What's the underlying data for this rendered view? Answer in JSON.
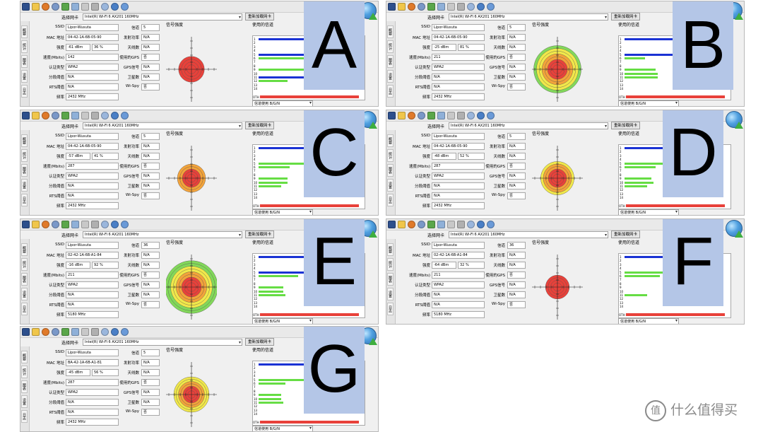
{
  "common": {
    "nic_label": "选择网卡",
    "nic_value": "Intel(R) Wi-Fi 6 AX201 160MHz",
    "reload_label": "重新加载网卡",
    "side_tabs": [
      "概要",
      "统计",
      "图表",
      "设置",
      "日志"
    ],
    "labels_left": [
      "SSID",
      "MAC 地址",
      "强度",
      "速度(Mbits)",
      "认证类型",
      "分段阈值",
      "RTS阈值",
      "频率"
    ],
    "labels_right": [
      "信道",
      "发射功率",
      "天线数",
      "使用的GPS",
      "GPS信号",
      "卫星数",
      "Wi-Spy"
    ],
    "signal_title": "信号强度",
    "channels_title": "使用的信道",
    "channel_mode": "信道使用 B/G/N",
    "channel_numbers": [
      "1",
      "2",
      "3",
      "4",
      "5",
      "6",
      "7",
      "8",
      "9",
      "10",
      "11",
      "12",
      "13",
      "14"
    ],
    "oth_label": "OTH",
    "colors": {
      "strong": "#1a32d4",
      "weak": "#66dd44",
      "oth": "#e8413a",
      "ring_red": "#e8413a",
      "ring_orange": "#f3a33a",
      "ring_yellow": "#f1e84a",
      "ring_green": "#82d85a",
      "letter_bg": "#b4c6e7"
    }
  },
  "panels": [
    {
      "letter": "A",
      "ssid": "Lipor-Wuxuta",
      "mac": "04-42-1A-6B-05-90",
      "strength_dbm": "-61 dBm",
      "strength_pct": "36 %",
      "speed": "142",
      "auth": "WPA2",
      "frag": "N/A",
      "rts": "N/A",
      "freq": "2432 MHz",
      "channel": "5",
      "tx_power": "N/A",
      "antennas": "N/A",
      "gps_used": "否",
      "gps_signal": "N/A",
      "satellites": "N/A",
      "wispy": "否",
      "signal_percent": 36,
      "rings": [
        "red",
        "red",
        "red",
        "red"
      ],
      "bars": [
        {
          "ch": 1,
          "kind": "strong",
          "level": 1.0
        },
        {
          "ch": 5,
          "kind": "strong",
          "level": 0.78
        },
        {
          "ch": 6,
          "kind": "weak",
          "level": 0.48
        },
        {
          "ch": 9,
          "kind": "weak",
          "level": 0.5
        },
        {
          "ch": 11,
          "kind": "strong",
          "level": 0.82
        },
        {
          "ch": 12,
          "kind": "weak",
          "level": 0.28
        }
      ]
    },
    {
      "letter": "B",
      "ssid": "Lipor-Wuxuta",
      "mac": "04-42-1A-6B-05-90",
      "strength_dbm": "-25 dBm",
      "strength_pct": "81 %",
      "speed": "211",
      "auth": "WPA2",
      "frag": "N/A",
      "rts": "N/A",
      "freq": "2432 MHz",
      "channel": "5",
      "tx_power": "N/A",
      "antennas": "N/A",
      "gps_used": "否",
      "gps_signal": "N/A",
      "satellites": "N/A",
      "wispy": "否",
      "signal_percent": 81,
      "rings": [
        "green",
        "yellow",
        "yellow",
        "orange",
        "orange",
        "red",
        "red",
        "red"
      ],
      "bars": [
        {
          "ch": 1,
          "kind": "strong",
          "level": 1.0
        },
        {
          "ch": 5,
          "kind": "strong",
          "level": 0.68
        },
        {
          "ch": 6,
          "kind": "weak",
          "level": 0.2
        },
        {
          "ch": 9,
          "kind": "weak",
          "level": 0.3
        },
        {
          "ch": 10,
          "kind": "weak",
          "level": 0.32
        },
        {
          "ch": 11,
          "kind": "weak",
          "level": 0.32
        }
      ]
    },
    {
      "letter": "C",
      "ssid": "Lipor-Wuxuta",
      "mac": "04-42-1A-6B-05-90",
      "strength_dbm": "-57 dBm",
      "strength_pct": "41 %",
      "speed": "287",
      "auth": "WPA2",
      "frag": "N/A",
      "rts": "N/A",
      "freq": "2432 MHz",
      "channel": "5",
      "tx_power": "N/A",
      "antennas": "N/A",
      "gps_used": "否",
      "gps_signal": "N/A",
      "satellites": "N/A",
      "wispy": "否",
      "signal_percent": 41,
      "rings": [
        "orange",
        "orange",
        "red",
        "red",
        "red"
      ],
      "bars": [
        {
          "ch": 1,
          "kind": "strong",
          "level": 0.82
        },
        {
          "ch": 5,
          "kind": "weak",
          "level": 0.55
        },
        {
          "ch": 6,
          "kind": "weak",
          "level": 0.3
        },
        {
          "ch": 9,
          "kind": "weak",
          "level": 0.28
        },
        {
          "ch": 10,
          "kind": "weak",
          "level": 0.28
        },
        {
          "ch": 11,
          "kind": "weak",
          "level": 0.22
        }
      ]
    },
    {
      "letter": "D",
      "ssid": "Lipor-Wuxuta",
      "mac": "04-42-1A-6B-05-90",
      "strength_dbm": "-48 dBm",
      "strength_pct": "52 %",
      "speed": "287",
      "auth": "WPA2",
      "frag": "N/A",
      "rts": "N/A",
      "freq": "2432 MHz",
      "channel": "5",
      "tx_power": "N/A",
      "antennas": "N/A",
      "gps_used": "否",
      "gps_signal": "N/A",
      "satellites": "N/A",
      "wispy": "否",
      "signal_percent": 52,
      "rings": [
        "yellow",
        "orange",
        "orange",
        "red",
        "red",
        "red"
      ],
      "bars": [
        {
          "ch": 1,
          "kind": "strong",
          "level": 0.74
        },
        {
          "ch": 5,
          "kind": "weak",
          "level": 0.5
        },
        {
          "ch": 6,
          "kind": "weak",
          "level": 0.3
        },
        {
          "ch": 9,
          "kind": "weak",
          "level": 0.26
        },
        {
          "ch": 10,
          "kind": "weak",
          "level": 0.28
        },
        {
          "ch": 11,
          "kind": "weak",
          "level": 0.22
        }
      ]
    },
    {
      "letter": "E",
      "ssid": "Lipor-Wuxuta",
      "mac": "02-42-1A-6B-A1-84",
      "strength_dbm": "-16 dBm",
      "strength_pct": "92 %",
      "speed": "211",
      "auth": "WPA2",
      "frag": "N/A",
      "rts": "N/A",
      "freq": "5180 MHz",
      "channel": "36",
      "tx_power": "N/A",
      "antennas": "N/A",
      "gps_used": "否",
      "gps_signal": "N/A",
      "satellites": "N/A",
      "wispy": "否",
      "signal_percent": 92,
      "rings": [
        "green",
        "green",
        "yellow",
        "yellow",
        "orange",
        "orange",
        "red",
        "red",
        "red"
      ],
      "bars": [
        {
          "ch": 1,
          "kind": "strong",
          "level": 0.76
        },
        {
          "ch": 5,
          "kind": "strong",
          "level": 0.55
        },
        {
          "ch": 6,
          "kind": "weak",
          "level": 0.38
        },
        {
          "ch": 9,
          "kind": "weak",
          "level": 0.24
        },
        {
          "ch": 10,
          "kind": "weak",
          "level": 0.24
        },
        {
          "ch": 11,
          "kind": "weak",
          "level": 0.26
        }
      ]
    },
    {
      "letter": "F",
      "ssid": "Lipor-Wuxuta",
      "mac": "02-42-1A-6B-A1-84",
      "strength_dbm": "-64 dBm",
      "strength_pct": "32 %",
      "speed": "211",
      "auth": "WPA2",
      "frag": "N/A",
      "rts": "N/A",
      "freq": "5180 MHz",
      "channel": "36",
      "tx_power": "N/A",
      "antennas": "N/A",
      "gps_used": "否",
      "gps_signal": "N/A",
      "satellites": "N/A",
      "wispy": "否",
      "signal_percent": 32,
      "rings": [
        "red",
        "red",
        "red",
        "red"
      ],
      "bars": [
        {
          "ch": 1,
          "kind": "strong",
          "level": 0.96
        },
        {
          "ch": 5,
          "kind": "weak",
          "level": 0.4
        },
        {
          "ch": 6,
          "kind": "weak",
          "level": 0.34
        },
        {
          "ch": 11,
          "kind": "weak",
          "level": 0.22
        }
      ]
    },
    {
      "letter": "G",
      "ssid": "Lipor-Wuxuta",
      "mac": "BA-42-1A-6B-A1-81",
      "strength_dbm": "-45 dBm",
      "strength_pct": "56 %",
      "speed": "287",
      "auth": "WPA2",
      "frag": "N/A",
      "rts": "N/A",
      "freq": "2432 MHz",
      "channel": "5",
      "tx_power": "N/A",
      "antennas": "N/A",
      "gps_used": "否",
      "gps_signal": "N/A",
      "satellites": "N/A",
      "wispy": "否",
      "signal_percent": 56,
      "rings": [
        "yellow",
        "yellow",
        "orange",
        "orange",
        "red",
        "red",
        "red"
      ],
      "bars": [
        {
          "ch": 1,
          "kind": "strong",
          "level": 0.76
        },
        {
          "ch": 5,
          "kind": "weak",
          "level": 0.5
        },
        {
          "ch": 6,
          "kind": "weak",
          "level": 0.26
        },
        {
          "ch": 9,
          "kind": "weak",
          "level": 0.22
        },
        {
          "ch": 10,
          "kind": "weak",
          "level": 0.22
        },
        {
          "ch": 11,
          "kind": "weak",
          "level": 0.24
        }
      ]
    }
  ],
  "watermark": {
    "text": "什么值得买",
    "logo_char": "值"
  }
}
